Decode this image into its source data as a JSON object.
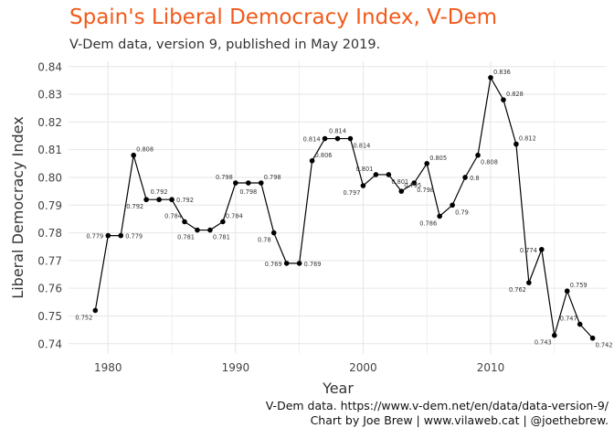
{
  "title": "Spain's Liberal Democracy Index, V-Dem",
  "subtitle": "V-Dem data, version 9, published in May 2019.",
  "caption_line1": "V-Dem data. https://www.v-dem.net/en/data/data-version-9/",
  "caption_line2": "Chart by Joe Brew | www.vilaweb.cat | @joethebrew.",
  "colors": {
    "title": "#f25a1b",
    "line": "#000000",
    "grid": "#e6e6e6"
  },
  "chart_data": {
    "type": "line",
    "title": "Spain's Liberal Democracy Index, V-Dem",
    "subtitle": "V-Dem data, version 9, published in May 2019.",
    "xlabel": "Year",
    "ylabel": "Liberal Democracy Index",
    "xlim": [
      1976.9,
      2019.1
    ],
    "ylim": [
      0.7363,
      0.8419
    ],
    "x_ticks": [
      1980,
      1990,
      2000,
      2010
    ],
    "y_ticks": [
      0.74,
      0.75,
      0.76,
      0.77,
      0.78,
      0.79,
      0.8,
      0.81,
      0.82,
      0.83,
      0.84
    ],
    "y_tick_labels": [
      "0.74",
      "0.75",
      "0.76",
      "0.77",
      "0.78",
      "0.79",
      "0.80",
      "0.81",
      "0.82",
      "0.83",
      "0.84"
    ],
    "grid": true,
    "points": [
      {
        "x": 1979,
        "y": 0.752,
        "label": "0.752",
        "pos": "bl"
      },
      {
        "x": 1980,
        "y": 0.779,
        "label": "0.779",
        "pos": "l"
      },
      {
        "x": 1981,
        "y": 0.779,
        "label": "0.779",
        "pos": "r"
      },
      {
        "x": 1982,
        "y": 0.808,
        "label": "0.808",
        "pos": "tr"
      },
      {
        "x": 1983,
        "y": 0.792,
        "label": "0.792",
        "pos": "bl"
      },
      {
        "x": 1984,
        "y": 0.792,
        "label": "0.792",
        "pos": "t"
      },
      {
        "x": 1985,
        "y": 0.792,
        "label": "0.792",
        "pos": "r"
      },
      {
        "x": 1986,
        "y": 0.784,
        "label": "0.784",
        "pos": "tl"
      },
      {
        "x": 1987,
        "y": 0.781,
        "label": "0.781",
        "pos": "bl"
      },
      {
        "x": 1988,
        "y": 0.781,
        "label": "0.781",
        "pos": "br"
      },
      {
        "x": 1989,
        "y": 0.784,
        "label": "0.784",
        "pos": "tr"
      },
      {
        "x": 1990,
        "y": 0.798,
        "label": "0.798",
        "pos": "tl"
      },
      {
        "x": 1991,
        "y": 0.798,
        "label": "0.798",
        "pos": "b"
      },
      {
        "x": 1992,
        "y": 0.798,
        "label": "0.798",
        "pos": "tr"
      },
      {
        "x": 1993,
        "y": 0.78,
        "label": "0.78",
        "pos": "bl"
      },
      {
        "x": 1994,
        "y": 0.769,
        "label": "0.769",
        "pos": "l"
      },
      {
        "x": 1995,
        "y": 0.769,
        "label": "0.769",
        "pos": "r"
      },
      {
        "x": 1996,
        "y": 0.806,
        "label": "0.806",
        "pos": "tr"
      },
      {
        "x": 1997,
        "y": 0.814,
        "label": "0.814",
        "pos": "l"
      },
      {
        "x": 1998,
        "y": 0.814,
        "label": "0.814",
        "pos": "t"
      },
      {
        "x": 1999,
        "y": 0.814,
        "label": "0.814",
        "pos": "br"
      },
      {
        "x": 2000,
        "y": 0.797,
        "label": "0.797",
        "pos": "bl"
      },
      {
        "x": 2001,
        "y": 0.801,
        "label": "0.801",
        "pos": "tl"
      },
      {
        "x": 2002,
        "y": 0.801,
        "label": "0.801",
        "pos": "br"
      },
      {
        "x": 2003,
        "y": 0.795,
        "label": "0.795",
        "pos": "tr"
      },
      {
        "x": 2004,
        "y": 0.798,
        "label": "0.798",
        "pos": "br"
      },
      {
        "x": 2005,
        "y": 0.805,
        "label": "0.805",
        "pos": "tr"
      },
      {
        "x": 2006,
        "y": 0.786,
        "label": "0.786",
        "pos": "bl"
      },
      {
        "x": 2007,
        "y": 0.79,
        "label": "0.79",
        "pos": "br"
      },
      {
        "x": 2008,
        "y": 0.8,
        "label": "0.8",
        "pos": "r"
      },
      {
        "x": 2009,
        "y": 0.808,
        "label": "0.808",
        "pos": "br"
      },
      {
        "x": 2010,
        "y": 0.836,
        "label": "0.836",
        "pos": "tr"
      },
      {
        "x": 2011,
        "y": 0.828,
        "label": "0.828",
        "pos": "tr"
      },
      {
        "x": 2012,
        "y": 0.812,
        "label": "0.812",
        "pos": "tr"
      },
      {
        "x": 2013,
        "y": 0.762,
        "label": "0.762",
        "pos": "bl"
      },
      {
        "x": 2014,
        "y": 0.774,
        "label": "0.774",
        "pos": "l"
      },
      {
        "x": 2015,
        "y": 0.743,
        "label": "0.743",
        "pos": "bl"
      },
      {
        "x": 2016,
        "y": 0.759,
        "label": "0.759",
        "pos": "tr"
      },
      {
        "x": 2017,
        "y": 0.747,
        "label": "0.747",
        "pos": "tl"
      },
      {
        "x": 2018,
        "y": 0.742,
        "label": "0.742",
        "pos": "br"
      }
    ]
  }
}
